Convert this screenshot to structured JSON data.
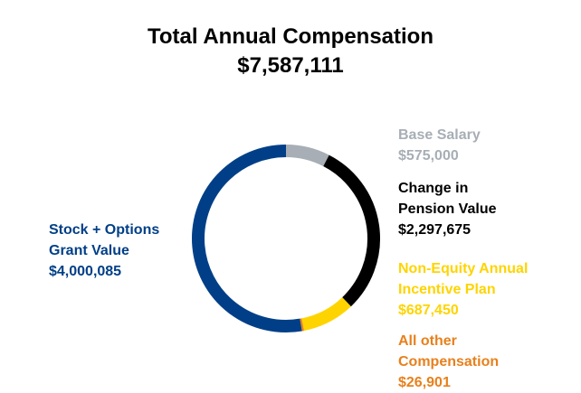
{
  "chart_data": {
    "type": "pie",
    "style": "donut",
    "title": "Total Annual Compensation",
    "subtitle": "$7,587,111",
    "slices": [
      {
        "label_lines": [
          "Base Salary",
          "$575,000"
        ],
        "value": 575000,
        "color": "#a7aeb5"
      },
      {
        "label_lines": [
          "Change in",
          "Pension Value",
          "$2,297,675"
        ],
        "value": 2297675,
        "color": "#000000"
      },
      {
        "label_lines": [
          "Non-Equity Annual",
          "Incentive Plan",
          "$687,450"
        ],
        "value": 687450,
        "color": "#fed400"
      },
      {
        "label_lines": [
          "All other",
          "Compensation",
          "$26,901"
        ],
        "value": 26901,
        "color": "#e8801c"
      },
      {
        "label_lines": [
          "Stock + Options",
          "Grant Value",
          "$4,000,085"
        ],
        "value": 4000085,
        "color": "#003f87"
      }
    ],
    "start_angle": "top",
    "direction": "clockwise"
  }
}
